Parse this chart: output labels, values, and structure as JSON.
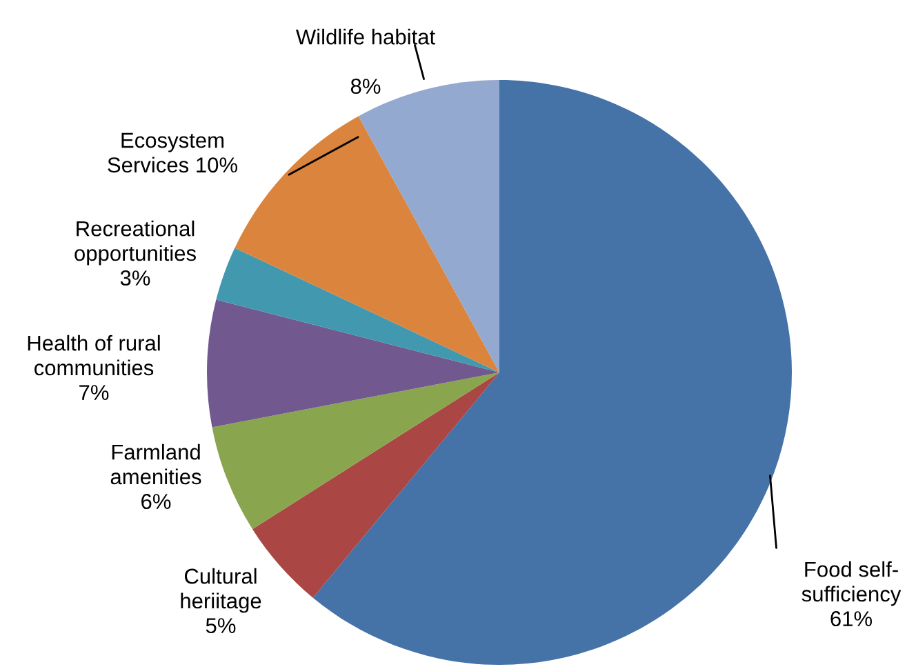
{
  "chart_data": {
    "type": "pie",
    "value_labels": [
      "61%",
      "5%",
      "6%",
      "7%",
      "3%",
      null,
      "8%"
    ],
    "categories": [
      "Food self-\nsufficiency",
      "Cultural\nheriitage",
      "Farmland\namenities",
      "Health of rural\ncommunities",
      "Recreational\nopportunities",
      "Ecosystem\nServices 10%",
      "Wildlife habitat"
    ],
    "values": [
      61,
      5,
      6,
      7,
      3,
      10,
      8
    ],
    "colors": [
      "#4572a7",
      "#aa4643",
      "#89a54e",
      "#71588f",
      "#4198af",
      "#db843d",
      "#93a9cf"
    ]
  }
}
